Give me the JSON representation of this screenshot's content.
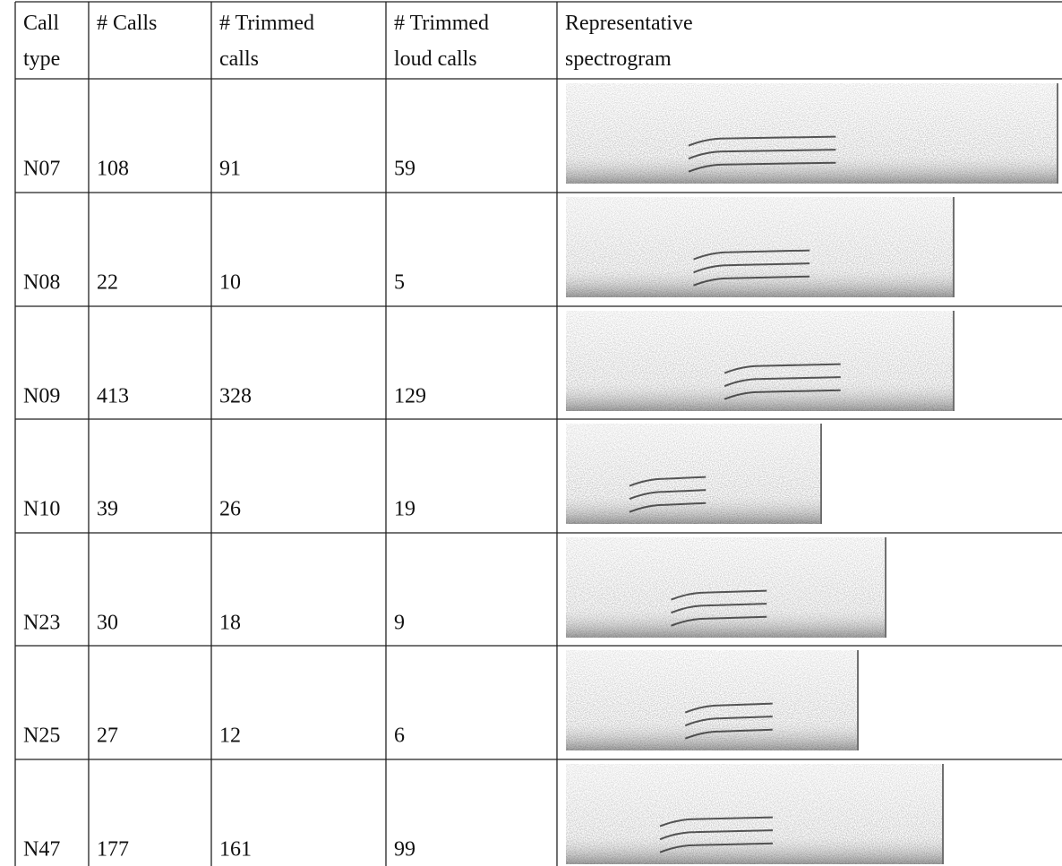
{
  "table": {
    "header": [
      [
        "Call",
        "type"
      ],
      [
        "# Calls"
      ],
      [
        "# Trimmed",
        "calls"
      ],
      [
        "# Trimmed",
        "loud calls"
      ],
      [
        "Representative",
        "spectrogram"
      ]
    ],
    "rows": [
      [
        "N07",
        "108",
        "91",
        "59"
      ],
      [
        "N08",
        "22",
        "10",
        "5"
      ],
      [
        "N09",
        "413",
        "328",
        "129"
      ],
      [
        "N10",
        "39",
        "26",
        "19"
      ],
      [
        "N23",
        "30",
        "18",
        "9"
      ],
      [
        "N25",
        "27",
        "12",
        "6"
      ],
      [
        "N47",
        "177",
        "161",
        "99"
      ]
    ]
  }
}
